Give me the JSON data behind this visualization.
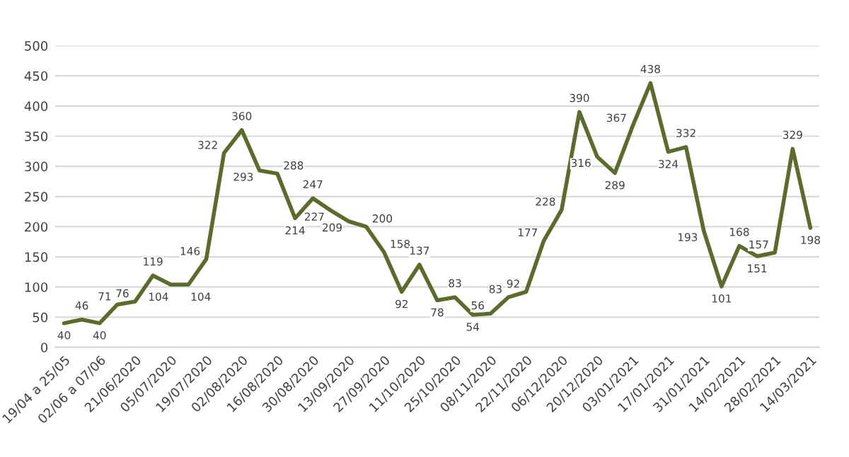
{
  "chart_data": {
    "type": "line",
    "categories": [
      "19/04 a 25/05",
      null,
      "02/06 a 07/06",
      null,
      "21/06/2020",
      null,
      "05/07/2020",
      null,
      "19/07/2020",
      null,
      "02/08/2020",
      null,
      "16/08/2020",
      null,
      "30/08/2020",
      null,
      "13/09/2020",
      null,
      "27/09/2020",
      null,
      "11/10/2020",
      null,
      "25/10/2020",
      null,
      "08/11/2020",
      null,
      "22/11/2020",
      null,
      "06/12/2020",
      null,
      "20/12/2020",
      null,
      "03/01/2021",
      null,
      "17/01/2021",
      null,
      "31/01/2021",
      null,
      "14/02/2021",
      null,
      "28/02/2021",
      null,
      "14/03/2021"
    ],
    "series": [
      {
        "color": "#5b6b2b",
        "values": [
          40,
          46,
          40,
          71,
          76,
          119,
          104,
          104,
          146,
          322,
          360,
          293,
          288,
          214,
          247,
          227,
          209,
          200,
          158,
          92,
          137,
          78,
          83,
          54,
          56,
          83,
          92,
          177,
          228,
          390,
          316,
          289,
          367,
          438,
          324,
          332,
          193,
          101,
          168,
          151,
          157,
          329,
          198
        ]
      }
    ],
    "ylim": [
      0,
      500
    ],
    "yticks": [
      0,
      50,
      100,
      150,
      200,
      250,
      300,
      350,
      400,
      450,
      500
    ],
    "grid": "y",
    "data_labels": true,
    "marker": "none",
    "line_style": "solid"
  }
}
